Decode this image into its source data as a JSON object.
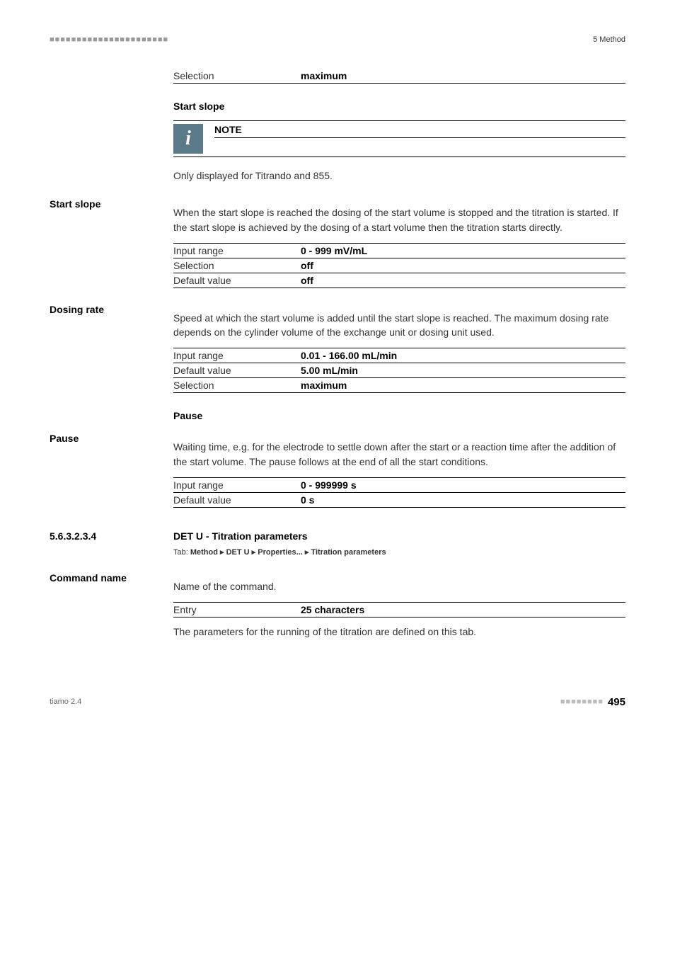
{
  "header": {
    "dots": "■■■■■■■■■■■■■■■■■■■■■■",
    "section": "5 Method"
  },
  "selection_row": {
    "label": "Selection",
    "value": "maximum"
  },
  "start_slope_section": {
    "heading": "Start slope",
    "note_label": "NOTE",
    "note_text": "Only displayed for Titrando and 855."
  },
  "start_slope_param": {
    "name": "Start slope",
    "desc": "When the start slope is reached the dosing of the start volume is stopped and the titration is started. If the start slope is achieved by the dosing of a start volume then the titration starts directly.",
    "rows": [
      {
        "label": "Input range",
        "value": "0 - 999 mV/mL"
      },
      {
        "label": "Selection",
        "value": "off"
      },
      {
        "label": "Default value",
        "value": "off"
      }
    ]
  },
  "dosing_rate_param": {
    "name": "Dosing rate",
    "desc": "Speed at which the start volume is added until the start slope is reached. The maximum dosing rate depends on the cylinder volume of the exchange unit or dosing unit used.",
    "rows": [
      {
        "label": "Input range",
        "value": "0.01 - 166.00 mL/min"
      },
      {
        "label": "Default value",
        "value": "5.00 mL/min"
      },
      {
        "label": "Selection",
        "value": "maximum"
      }
    ]
  },
  "pause_section": {
    "heading": "Pause"
  },
  "pause_param": {
    "name": "Pause",
    "desc": "Waiting time, e.g. for the electrode to settle down after the start or a reaction time after the addition of the start volume. The pause follows at the end of all the start conditions.",
    "rows": [
      {
        "label": "Input range",
        "value": "0 - 999999 s"
      },
      {
        "label": "Default value",
        "value": "0 s"
      }
    ]
  },
  "titration_params": {
    "num": "5.6.3.2.3.4",
    "title": "DET U - Titration parameters",
    "tab_prefix": "Tab: ",
    "tab_path": "Method ▸ DET U ▸ Properties... ▸ Titration parameters"
  },
  "command_name_param": {
    "name": "Command name",
    "desc": "Name of the command.",
    "entry_label": "Entry",
    "entry_value": "25 characters",
    "footer_text": "The parameters for the running of the titration are defined on this tab."
  },
  "footer": {
    "left": "tiamo 2.4",
    "dots": "■■■■■■■■",
    "page": "495"
  }
}
